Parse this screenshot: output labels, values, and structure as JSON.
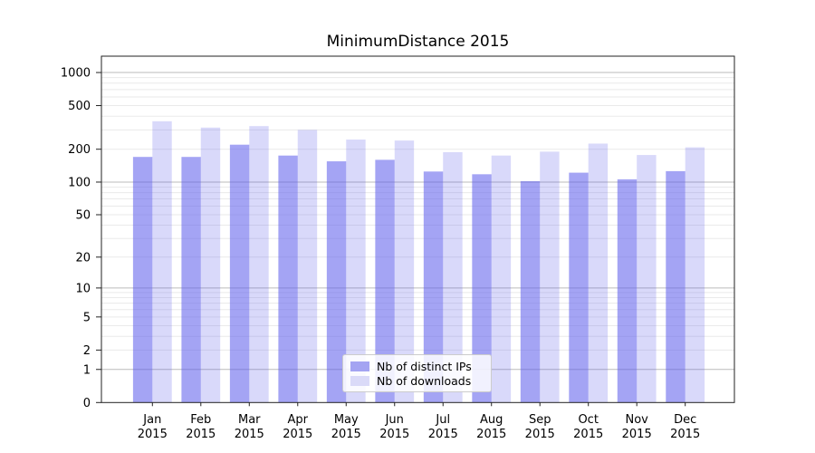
{
  "chart_data": {
    "type": "bar",
    "title": "MinimumDistance 2015",
    "categories": [
      {
        "month": "Jan",
        "year": "2015"
      },
      {
        "month": "Feb",
        "year": "2015"
      },
      {
        "month": "Mar",
        "year": "2015"
      },
      {
        "month": "Apr",
        "year": "2015"
      },
      {
        "month": "May",
        "year": "2015"
      },
      {
        "month": "Jun",
        "year": "2015"
      },
      {
        "month": "Jul",
        "year": "2015"
      },
      {
        "month": "Aug",
        "year": "2015"
      },
      {
        "month": "Sep",
        "year": "2015"
      },
      {
        "month": "Oct",
        "year": "2015"
      },
      {
        "month": "Nov",
        "year": "2015"
      },
      {
        "month": "Dec",
        "year": "2015"
      }
    ],
    "series": [
      {
        "name": "Nb of distinct IPs",
        "swatch_color": "#a4a4f2",
        "fill": "rgba(92,92,235,0.56)",
        "values": [
          170,
          170,
          220,
          175,
          155,
          160,
          125,
          118,
          102,
          122,
          106,
          126
        ]
      },
      {
        "name": "Nb of downloads",
        "swatch_color": "#dadaf8",
        "fill": "rgba(92,92,235,0.23)",
        "values": [
          360,
          315,
          325,
          300,
          245,
          240,
          188,
          175,
          190,
          225,
          177,
          208
        ]
      }
    ],
    "yscale": "log1p",
    "yticks": [
      0,
      1,
      2,
      5,
      10,
      20,
      50,
      100,
      200,
      500,
      1000
    ],
    "ylim": [
      0,
      1410
    ],
    "xlabel": "",
    "ylabel": "",
    "grid": {
      "major_color": "#bbbbbb",
      "minor_color": "#eaeaea"
    },
    "legend_position": "lower-center",
    "axis_color": "#222222",
    "text_color": "#000000"
  }
}
